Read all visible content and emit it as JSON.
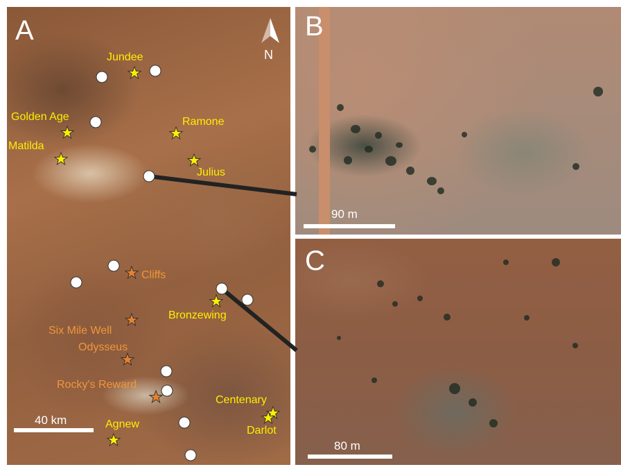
{
  "panels": {
    "a": {
      "letter": "A"
    },
    "b": {
      "letter": "B",
      "scale_label": "90 m"
    },
    "c": {
      "letter": "C",
      "scale_label": "80 m"
    }
  },
  "map": {
    "north_label": "N",
    "scale_label": "40 km",
    "places": {
      "jundee": "Jundee",
      "golden_age": "Golden Age",
      "matilda": "Matilda",
      "ramone": "Ramone",
      "julius": "Julius",
      "cliffs": "Cliffs",
      "bronzewing": "Bronzewing",
      "six_mile_well": "Six Mile Well",
      "odysseus": "Odysseus",
      "rockys_reward": "Rocky's Reward",
      "centenary": "Centenary",
      "darlot": "Darlot",
      "agnew": "Agnew"
    }
  },
  "colors": {
    "yellow_marker": "#ffee00",
    "orange_marker": "#e8812e",
    "site_marker": "#ffffff",
    "connector": "#222222"
  }
}
